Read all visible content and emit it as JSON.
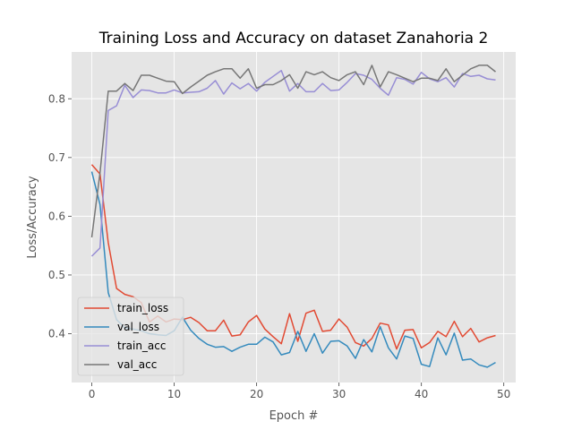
{
  "chart_data": {
    "type": "line",
    "title": "Training Loss and Accuracy on dataset Zanahoria 2",
    "xlabel": "Epoch #",
    "ylabel": "Loss/Accuracy",
    "xlim": [
      -2.45,
      51.45
    ],
    "ylim": [
      0.3169,
      0.8797
    ],
    "xticks": [
      0,
      10,
      20,
      30,
      40,
      50
    ],
    "yticks": [
      0.4,
      0.5,
      0.6,
      0.7,
      0.8
    ],
    "grid": true,
    "legend": "lower-left",
    "x": [
      0,
      1,
      2,
      3,
      4,
      5,
      6,
      7,
      8,
      9,
      10,
      11,
      12,
      13,
      14,
      15,
      16,
      17,
      18,
      19,
      20,
      21,
      22,
      23,
      24,
      25,
      26,
      27,
      28,
      29,
      30,
      31,
      32,
      33,
      34,
      35,
      36,
      37,
      38,
      39,
      40,
      41,
      42,
      43,
      44,
      45,
      46,
      47,
      48,
      49
    ],
    "series": [
      {
        "name": "train_loss",
        "color": "#e24a33",
        "values": [
          0.688,
          0.672,
          0.555,
          0.477,
          0.467,
          0.463,
          0.453,
          0.42,
          0.43,
          0.42,
          0.425,
          0.424,
          0.428,
          0.419,
          0.405,
          0.405,
          0.423,
          0.396,
          0.398,
          0.42,
          0.431,
          0.408,
          0.395,
          0.383,
          0.434,
          0.387,
          0.435,
          0.44,
          0.404,
          0.406,
          0.425,
          0.411,
          0.385,
          0.379,
          0.392,
          0.418,
          0.415,
          0.374,
          0.406,
          0.407,
          0.376,
          0.385,
          0.404,
          0.395,
          0.421,
          0.395,
          0.409,
          0.386,
          0.393,
          0.397
        ]
      },
      {
        "name": "val_loss",
        "color": "#348abd",
        "values": [
          0.676,
          0.62,
          0.47,
          0.424,
          0.41,
          0.408,
          0.405,
          0.4,
          0.398,
          0.397,
          0.405,
          0.428,
          0.406,
          0.392,
          0.382,
          0.377,
          0.378,
          0.37,
          0.377,
          0.382,
          0.382,
          0.394,
          0.386,
          0.364,
          0.368,
          0.404,
          0.37,
          0.4,
          0.367,
          0.387,
          0.388,
          0.379,
          0.358,
          0.39,
          0.369,
          0.412,
          0.376,
          0.357,
          0.396,
          0.392,
          0.348,
          0.344,
          0.393,
          0.364,
          0.401,
          0.355,
          0.357,
          0.347,
          0.343,
          0.351
        ]
      },
      {
        "name": "train_acc",
        "color": "#988ed5",
        "values": [
          0.532,
          0.546,
          0.78,
          0.788,
          0.823,
          0.802,
          0.815,
          0.814,
          0.81,
          0.81,
          0.815,
          0.81,
          0.811,
          0.812,
          0.818,
          0.831,
          0.808,
          0.827,
          0.817,
          0.826,
          0.813,
          0.828,
          0.838,
          0.848,
          0.813,
          0.826,
          0.812,
          0.812,
          0.826,
          0.814,
          0.815,
          0.828,
          0.843,
          0.84,
          0.833,
          0.818,
          0.806,
          0.836,
          0.833,
          0.825,
          0.845,
          0.834,
          0.829,
          0.836,
          0.82,
          0.843,
          0.838,
          0.84,
          0.834,
          0.832
        ]
      },
      {
        "name": "val_acc",
        "color": "#777777",
        "values": [
          0.564,
          0.674,
          0.813,
          0.813,
          0.826,
          0.814,
          0.84,
          0.84,
          0.835,
          0.83,
          0.829,
          0.809,
          0.82,
          0.83,
          0.84,
          0.846,
          0.851,
          0.851,
          0.835,
          0.851,
          0.818,
          0.824,
          0.824,
          0.831,
          0.841,
          0.818,
          0.846,
          0.841,
          0.846,
          0.836,
          0.831,
          0.841,
          0.846,
          0.824,
          0.857,
          0.82,
          0.846,
          0.841,
          0.835,
          0.829,
          0.835,
          0.835,
          0.831,
          0.851,
          0.829,
          0.84,
          0.851,
          0.857,
          0.857,
          0.846
        ]
      }
    ]
  }
}
